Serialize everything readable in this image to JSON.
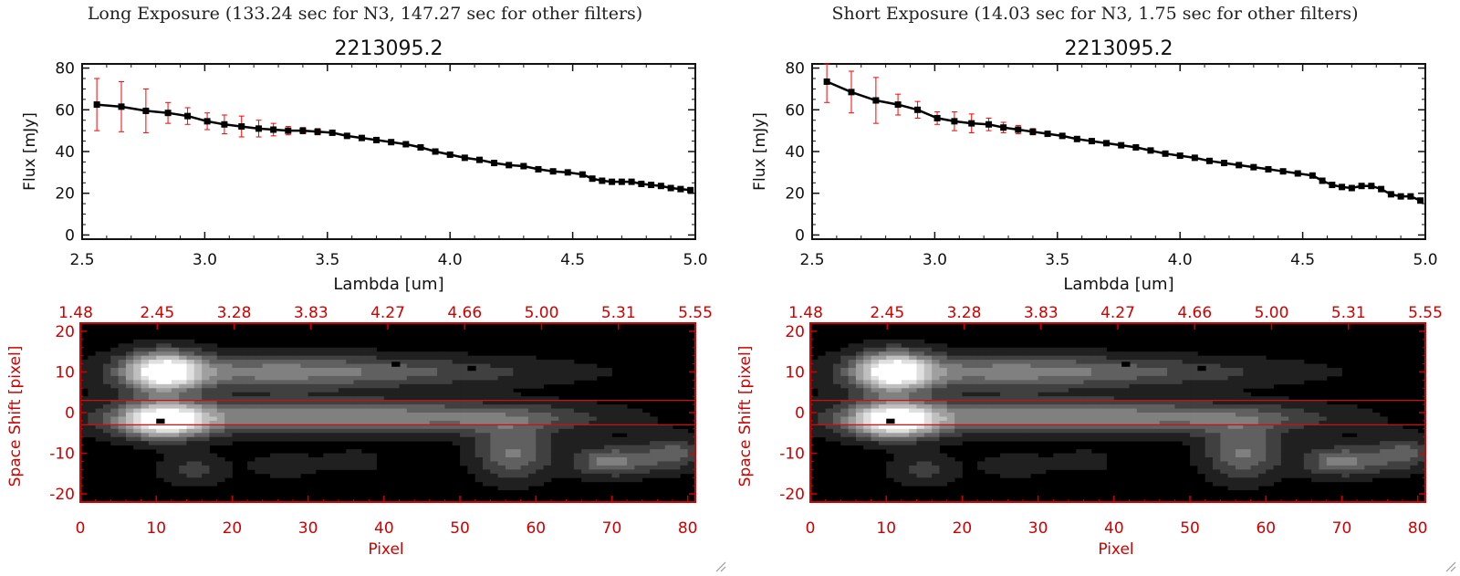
{
  "panels": [
    {
      "title": "Long Exposure (133.24 sec for N3, 147.27 sec for other filters)",
      "chart_data": [
        {
          "type": "line",
          "title": "2213095.2",
          "xlabel": "Lambda [um]",
          "ylabel": "Flux [mJy]",
          "xlim": [
            2.5,
            5.0
          ],
          "ylim": [
            -2,
            82
          ],
          "xticks": [
            "2.5",
            "3.0",
            "3.5",
            "4.0",
            "4.5",
            "5.0"
          ],
          "yticks": [
            "0",
            "20",
            "40",
            "60",
            "80"
          ],
          "series": [
            {
              "x": [
                2.56,
                2.66,
                2.76,
                2.85,
                2.93,
                3.01,
                3.08,
                3.15,
                3.22,
                3.28,
                3.34,
                3.4,
                3.46,
                3.52,
                3.58,
                3.64,
                3.7,
                3.76,
                3.82,
                3.88,
                3.94,
                4.0,
                4.06,
                4.12,
                4.18,
                4.24,
                4.3,
                4.36,
                4.42,
                4.48,
                4.54,
                4.58,
                4.62,
                4.66,
                4.7,
                4.74,
                4.78,
                4.82,
                4.86,
                4.9,
                4.94,
                4.98
              ],
              "y": [
                62.5,
                61.5,
                59.5,
                58.5,
                57,
                54.5,
                53,
                52,
                51,
                50.5,
                50,
                50,
                49.5,
                49,
                47.5,
                46.5,
                45.5,
                44.5,
                43.5,
                42,
                40,
                38.5,
                37,
                36,
                34.5,
                33.5,
                33,
                31.5,
                30.5,
                30,
                29,
                27,
                26,
                25.5,
                25.5,
                25.5,
                24.5,
                24,
                23.5,
                22.5,
                22,
                21.5
              ],
              "yerr": [
                12.5,
                12,
                10.5,
                5,
                4,
                4,
                4.5,
                5,
                4,
                3,
                2,
                1.5,
                1.5,
                1,
                1,
                1,
                1,
                1,
                1,
                1,
                1,
                1,
                1,
                1,
                1,
                1,
                1,
                1,
                1,
                1,
                1,
                1,
                1,
                1,
                1,
                1,
                1,
                1,
                1,
                1,
                1,
                1
              ]
            }
          ]
        },
        {
          "type": "heatmap",
          "xlabel": "Pixel",
          "ylabel": "Space Shift [pixel]",
          "xlim": [
            0,
            81
          ],
          "ylim": [
            -22,
            22
          ],
          "xticks": [
            "0",
            "10",
            "20",
            "30",
            "40",
            "50",
            "60",
            "70",
            "80"
          ],
          "yticks": [
            "-20",
            "-10",
            "0",
            "10",
            "20"
          ],
          "top_ticks": [
            "1.48",
            "2.45",
            "3.28",
            "3.83",
            "4.27",
            "4.66",
            "5.00",
            "5.31",
            "5.55"
          ],
          "aperture_y": [
            -3,
            3
          ],
          "blobs": [
            {
              "x": 11,
              "y": 10,
              "sx": 3.5,
              "sy": 3.5,
              "a": 0.95
            },
            {
              "x": 24,
              "y": 10,
              "sx": 14,
              "sy": 3.0,
              "a": 0.45
            },
            {
              "x": 48,
              "y": 10,
              "sx": 14,
              "sy": 2.5,
              "a": 0.2
            },
            {
              "x": 11,
              "y": -2,
              "sx": 4,
              "sy": 3.0,
              "a": 1.0
            },
            {
              "x": 30,
              "y": -1,
              "sx": 18,
              "sy": 3.0,
              "a": 0.55
            },
            {
              "x": 57,
              "y": -1.5,
              "sx": 10,
              "sy": 2.5,
              "a": 0.22
            },
            {
              "x": 57,
              "y": -10,
              "sx": 3.5,
              "sy": 4.5,
              "a": 0.45
            },
            {
              "x": 70,
              "y": -12,
              "sx": 3.5,
              "sy": 2.5,
              "a": 0.5
            },
            {
              "x": 78,
              "y": -10,
              "sx": 3,
              "sy": 3,
              "a": 0.35
            },
            {
              "x": 15,
              "y": -14,
              "sx": 3,
              "sy": 2.5,
              "a": 0.25
            },
            {
              "x": 27,
              "y": -13,
              "sx": 3,
              "sy": 2,
              "a": 0.18
            },
            {
              "x": 36,
              "y": -12,
              "sx": 3,
              "sy": 2,
              "a": 0.12
            }
          ],
          "dark_pixels": [
            [
              10,
              -2
            ],
            [
              41,
              12
            ],
            [
              51,
              11
            ]
          ]
        }
      ]
    },
    {
      "title": "Short Exposure (14.03 sec for N3, 1.75 sec for other filters)",
      "chart_data": [
        {
          "type": "line",
          "title": "2213095.2",
          "xlabel": "Lambda [um]",
          "ylabel": "Flux [mJy]",
          "xlim": [
            2.5,
            5.0
          ],
          "ylim": [
            -2,
            82
          ],
          "xticks": [
            "2.5",
            "3.0",
            "3.5",
            "4.0",
            "4.5",
            "5.0"
          ],
          "yticks": [
            "0",
            "20",
            "40",
            "60",
            "80"
          ],
          "series": [
            {
              "x": [
                2.56,
                2.66,
                2.76,
                2.85,
                2.93,
                3.01,
                3.08,
                3.15,
                3.22,
                3.28,
                3.34,
                3.4,
                3.46,
                3.52,
                3.58,
                3.64,
                3.7,
                3.76,
                3.82,
                3.88,
                3.94,
                4.0,
                4.06,
                4.12,
                4.18,
                4.24,
                4.3,
                4.36,
                4.42,
                4.48,
                4.54,
                4.58,
                4.62,
                4.66,
                4.7,
                4.74,
                4.78,
                4.82,
                4.86,
                4.9,
                4.94,
                4.98
              ],
              "y": [
                73.5,
                68.5,
                64.5,
                62.5,
                60,
                56,
                54.5,
                53.5,
                53,
                51.5,
                50.5,
                49.5,
                48.5,
                47.5,
                46,
                45,
                44,
                43,
                42,
                40.5,
                39,
                38,
                37,
                35.5,
                34.5,
                33.5,
                32.5,
                31.5,
                30.5,
                29.5,
                28.5,
                26,
                24,
                23,
                22.5,
                23.5,
                23.5,
                22,
                19.5,
                18.5,
                18.5,
                16.5
              ],
              "yerr": [
                10,
                10,
                11,
                5,
                4,
                3,
                4.5,
                4.5,
                3,
                2.5,
                2,
                1.5,
                1,
                1,
                1,
                1,
                1,
                1,
                1,
                1,
                1,
                1,
                1,
                1,
                1,
                1,
                1,
                1,
                1,
                1,
                1,
                1,
                1,
                1,
                1,
                1,
                1,
                1,
                1,
                1,
                1,
                1
              ]
            }
          ]
        },
        {
          "type": "heatmap",
          "xlabel": "Pixel",
          "ylabel": "Space Shift [pixel]",
          "xlim": [
            0,
            81
          ],
          "ylim": [
            -22,
            22
          ],
          "xticks": [
            "0",
            "10",
            "20",
            "30",
            "40",
            "50",
            "60",
            "70",
            "80"
          ],
          "yticks": [
            "-20",
            "-10",
            "0",
            "10",
            "20"
          ],
          "top_ticks": [
            "1.48",
            "2.45",
            "3.28",
            "3.83",
            "4.27",
            "4.66",
            "5.00",
            "5.31",
            "5.55"
          ],
          "aperture_y": [
            -3,
            3
          ],
          "blobs": [
            {
              "x": 11,
              "y": 10,
              "sx": 3.5,
              "sy": 3.5,
              "a": 0.95
            },
            {
              "x": 24,
              "y": 10,
              "sx": 14,
              "sy": 3.0,
              "a": 0.45
            },
            {
              "x": 48,
              "y": 10,
              "sx": 14,
              "sy": 2.5,
              "a": 0.2
            },
            {
              "x": 11,
              "y": -2,
              "sx": 4,
              "sy": 3.0,
              "a": 1.0
            },
            {
              "x": 30,
              "y": -1,
              "sx": 18,
              "sy": 3.0,
              "a": 0.55
            },
            {
              "x": 57,
              "y": -1.5,
              "sx": 10,
              "sy": 2.5,
              "a": 0.22
            },
            {
              "x": 57,
              "y": -10,
              "sx": 3.5,
              "sy": 4.5,
              "a": 0.45
            },
            {
              "x": 70,
              "y": -12,
              "sx": 3.5,
              "sy": 2.5,
              "a": 0.5
            },
            {
              "x": 78,
              "y": -10,
              "sx": 3,
              "sy": 3,
              "a": 0.35
            },
            {
              "x": 15,
              "y": -14,
              "sx": 3,
              "sy": 2.5,
              "a": 0.25
            },
            {
              "x": 27,
              "y": -13,
              "sx": 3,
              "sy": 2,
              "a": 0.18
            },
            {
              "x": 36,
              "y": -12,
              "sx": 3,
              "sy": 2,
              "a": 0.12
            }
          ],
          "dark_pixels": [
            [
              10,
              -2
            ],
            [
              41,
              12
            ],
            [
              51,
              11
            ]
          ]
        }
      ]
    }
  ],
  "colors": {
    "axis_red": "#d00000",
    "error_bar": "#ff0000",
    "marker": "#000000",
    "aperture_line": "#cc1010"
  }
}
